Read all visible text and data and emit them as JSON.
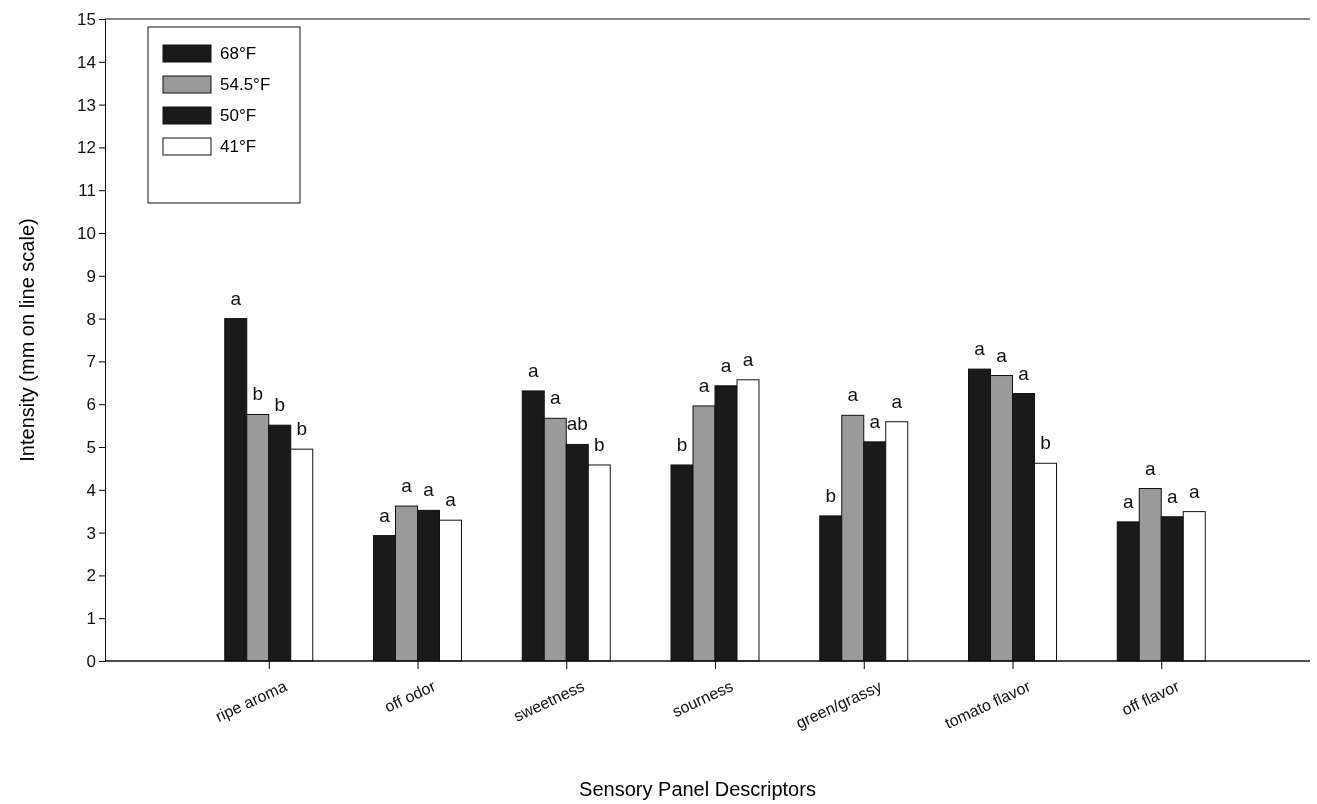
{
  "chart_data": {
    "type": "bar",
    "xlabel": "Sensory Panel Descriptors",
    "ylabel": "Intensity (mm on line scale)",
    "categories": [
      "ripe aroma",
      "off odor",
      "sweetness",
      "sourness",
      "green/grassy",
      "tomato flavor",
      "off flavor"
    ],
    "series": [
      {
        "name": "68°F",
        "color": "#1a1a1a",
        "values": [
          8.0,
          2.93,
          6.31,
          4.58,
          3.39,
          6.82,
          3.25
        ],
        "value_labels": [
          "a",
          "a",
          "a",
          "b",
          "b",
          "a",
          "a"
        ]
      },
      {
        "name": "54.5°F",
        "color": "#9a9a9a",
        "values": [
          5.76,
          3.62,
          5.67,
          5.96,
          5.74,
          6.67,
          4.03
        ],
        "value_labels": [
          "b",
          "a",
          "a",
          "a",
          "a",
          "a",
          "a"
        ]
      },
      {
        "name": "50°F",
        "color": "#1a1a1a",
        "values": [
          5.51,
          3.52,
          5.06,
          6.43,
          5.12,
          6.25,
          3.37
        ],
        "value_labels": [
          "b",
          "a",
          "ab",
          "a",
          "a",
          "a",
          "a"
        ]
      },
      {
        "name": "41°F",
        "color": "#ffffff",
        "values": [
          4.95,
          3.29,
          4.58,
          6.57,
          5.59,
          4.62,
          3.49
        ],
        "value_labels": [
          "b",
          "a",
          "b",
          "a",
          "a",
          "b",
          "a"
        ]
      }
    ],
    "ylim": [
      0,
      15
    ],
    "yticks": [
      0,
      1,
      2,
      3,
      4,
      5,
      6,
      7,
      8,
      9,
      10,
      11,
      12,
      13,
      14,
      15
    ],
    "legend": "top left"
  }
}
